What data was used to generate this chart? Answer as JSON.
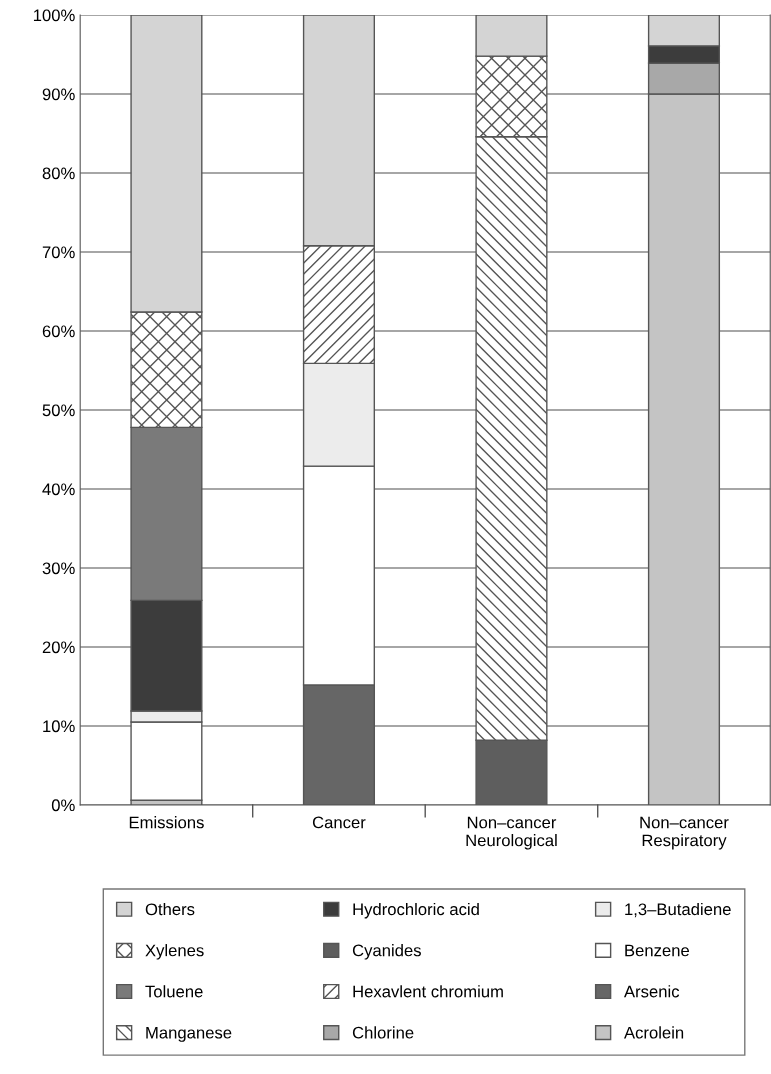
{
  "chart_data": {
    "type": "bar",
    "stacked": true,
    "categories": [
      "Emissions",
      "Cancer",
      "Non–cancer\nNeurological",
      "Non–cancer\nRespiratory"
    ],
    "series": [
      {
        "name": "Acrolein",
        "color": "#c4c4c4",
        "values": [
          0.6,
          null,
          null,
          90.0
        ]
      },
      {
        "name": "Arsenic",
        "color": "#666666",
        "values": [
          null,
          15.2,
          null,
          null
        ]
      },
      {
        "name": "Cyanides",
        "color": "#5e5e5e",
        "values": [
          null,
          null,
          8.2,
          null
        ]
      },
      {
        "name": "Chlorine",
        "color": "#a8a8a8",
        "values": [
          null,
          null,
          null,
          3.9
        ]
      },
      {
        "name": "Benzene",
        "color": "#ffffff",
        "values": [
          9.9,
          27.7,
          null,
          null
        ]
      },
      {
        "name": "1,3–Butadiene",
        "color": "#ececec",
        "values": [
          1.4,
          13.0,
          null,
          null
        ]
      },
      {
        "name": "Hydrochloric acid",
        "color": "#3c3c3c",
        "values": [
          14.0,
          null,
          null,
          2.2
        ]
      },
      {
        "name": "Toluene",
        "color": "#7a7a7a",
        "values": [
          21.9,
          null,
          null,
          null
        ]
      },
      {
        "name": "Manganese",
        "color": "#555555",
        "values": [
          null,
          null,
          76.4,
          null
        ]
      },
      {
        "name": "Hexavlent chromium",
        "color": "#555555",
        "values": [
          null,
          14.9,
          null,
          null
        ]
      },
      {
        "name": "Xylenes",
        "color": "#555555",
        "values": [
          14.6,
          null,
          10.2,
          null
        ]
      },
      {
        "name": "Others",
        "color": "#d4d4d4",
        "values": [
          37.6,
          29.2,
          5.2,
          3.9
        ]
      }
    ],
    "ylim": [
      0,
      100
    ],
    "yticks": [
      {
        "value": 0,
        "label": "0%"
      },
      {
        "value": 10,
        "label": "10%"
      },
      {
        "value": 20,
        "label": "20%"
      },
      {
        "value": 30,
        "label": "30%"
      },
      {
        "value": 40,
        "label": "40%"
      },
      {
        "value": 50,
        "label": "50%"
      },
      {
        "value": 60,
        "label": "60%"
      },
      {
        "value": 70,
        "label": "70%"
      },
      {
        "value": 80,
        "label": "80%"
      },
      {
        "value": 90,
        "label": "90%"
      },
      {
        "value": 100,
        "label": "100%"
      }
    ],
    "grid": "y",
    "legend": "bottom"
  }
}
